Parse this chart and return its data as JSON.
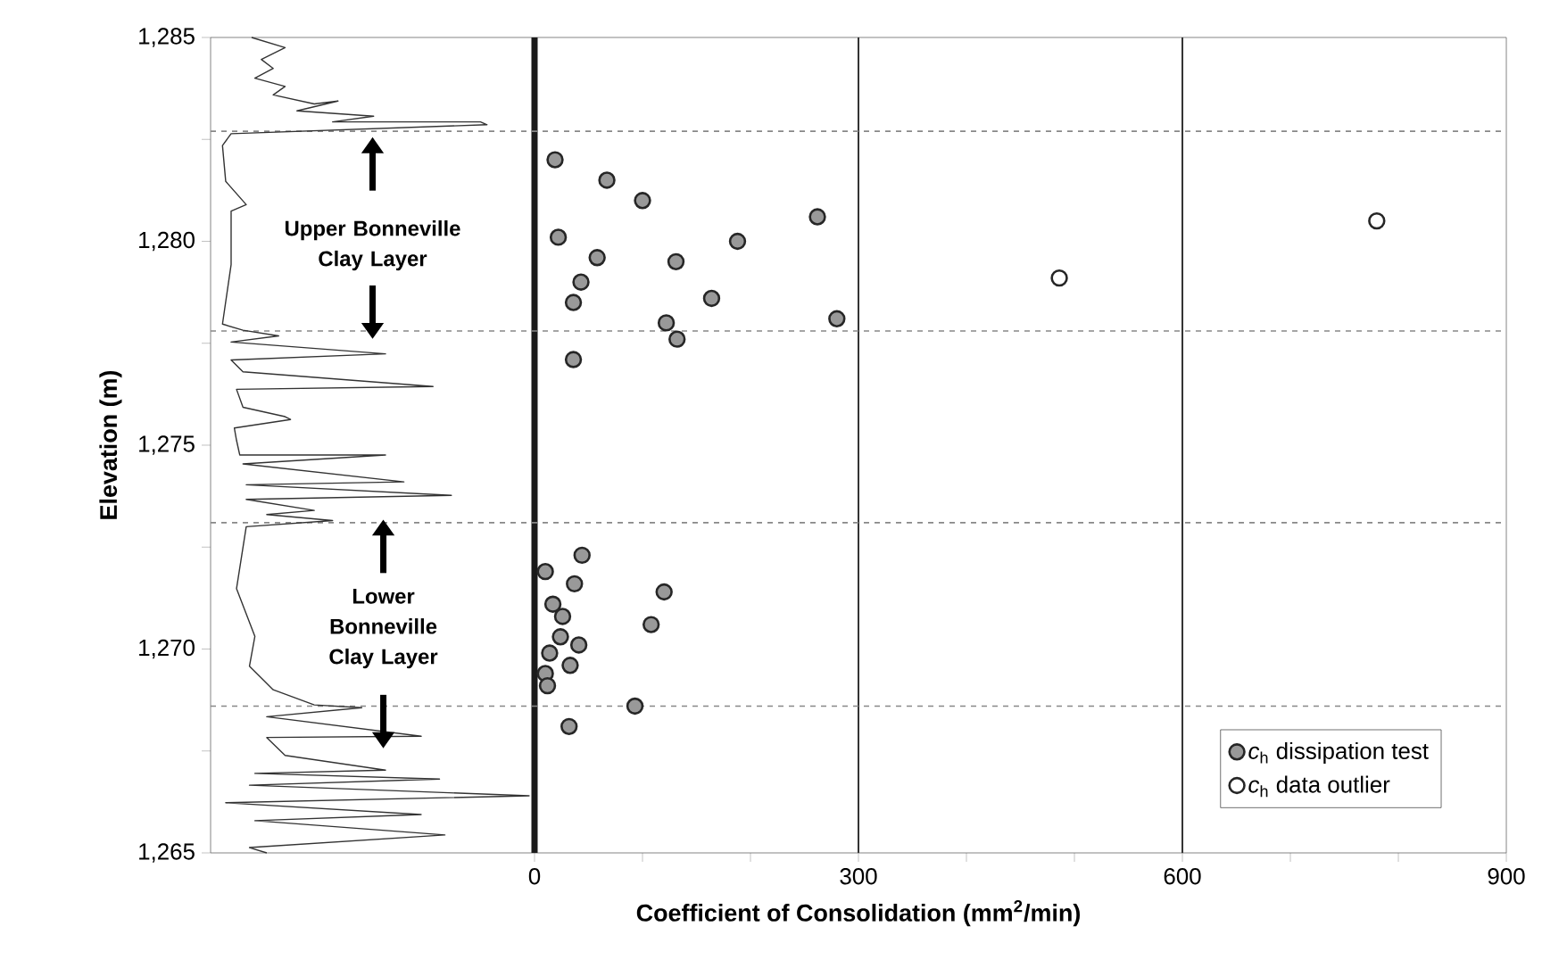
{
  "chart_data": {
    "type": "scatter",
    "xlabel": "Coefficient of Consolidation (mm$^{2}$/min)",
    "ylabel": "Elevation (m)",
    "xlim": [
      -300,
      900
    ],
    "xticks": [
      0,
      {
        "value": 100,
        "label": null
      },
      {
        "value": 200,
        "label": null
      },
      300,
      {
        "value": 400,
        "label": null
      },
      {
        "value": 500,
        "label": null
      },
      600,
      {
        "value": 700,
        "label": null
      },
      {
        "value": 800,
        "label": null
      },
      900
    ],
    "ylim": [
      1265,
      1285
    ],
    "yticks": [
      {
        "value": 1265,
        "label": "1,265"
      },
      {
        "value": 1267.5,
        "label": null
      },
      {
        "value": 1270,
        "label": "1,270"
      },
      {
        "value": 1272.5,
        "label": null
      },
      {
        "value": 1275,
        "label": "1,275"
      },
      {
        "value": 1277.5,
        "label": null
      },
      {
        "value": 1280,
        "label": "1,280"
      },
      {
        "value": 1282.5,
        "label": null
      },
      {
        "value": 1285,
        "label": "1,285"
      }
    ],
    "legend": "bottom right",
    "series": [
      {
        "type": "line",
        "marker": "none",
        "color": "#333333",
        "x": [
          -262,
          -231,
          -253,
          -242,
          -259,
          -231,
          -242,
          -204,
          -182,
          -220,
          -149,
          -187,
          -50,
          -44,
          -281,
          -289,
          -286,
          -267,
          -281,
          -281,
          -289,
          -270,
          -237,
          -281,
          -138,
          -281,
          -270,
          -94,
          -276,
          -270,
          -231,
          -226,
          -278,
          -276,
          -273,
          -138,
          -270,
          -121,
          -267,
          -77,
          -267,
          -204,
          -248,
          -187,
          -267,
          -276,
          -259,
          -264,
          -242,
          -204,
          -160,
          -248,
          -105,
          -248,
          -231,
          -138,
          -259,
          -88,
          -264,
          -5,
          -286,
          -105,
          -259,
          -83,
          -264,
          -248
        ],
        "values": [
          1285.0,
          1284.75,
          1284.46,
          1284.24,
          1284.0,
          1283.8,
          1283.59,
          1283.37,
          1283.44,
          1283.2,
          1283.07,
          1282.93,
          1282.93,
          1282.86,
          1282.64,
          1282.35,
          1281.47,
          1280.9,
          1280.74,
          1279.43,
          1277.97,
          1277.82,
          1277.68,
          1277.53,
          1277.24,
          1277.09,
          1276.8,
          1276.44,
          1276.37,
          1275.93,
          1275.7,
          1275.63,
          1275.42,
          1275.12,
          1274.76,
          1274.76,
          1274.54,
          1274.1,
          1274.03,
          1273.77,
          1273.67,
          1273.4,
          1273.3,
          1273.15,
          1273.0,
          1271.48,
          1270.31,
          1269.58,
          1269.0,
          1268.63,
          1268.56,
          1268.34,
          1267.86,
          1267.83,
          1267.39,
          1267.03,
          1266.95,
          1266.81,
          1266.66,
          1266.4,
          1266.23,
          1265.94,
          1265.79,
          1265.44,
          1265.13,
          1265.0
        ]
      },
      {
        "marker": "circle",
        "name": "*c*$_{h}$ dissipation test",
        "color": "#999999",
        "x": [
          19,
          67,
          100,
          262,
          22,
          188,
          58,
          131,
          43,
          36,
          164,
          122,
          280,
          132,
          36,
          44,
          10,
          37,
          120,
          17,
          26,
          108,
          24,
          41,
          14,
          33,
          10,
          12,
          93,
          32
        ],
        "values": [
          1282.0,
          1281.5,
          1281.0,
          1280.6,
          1280.1,
          1280.0,
          1279.6,
          1279.5,
          1279.0,
          1278.5,
          1278.6,
          1278.0,
          1278.1,
          1277.6,
          1277.1,
          1272.3,
          1271.9,
          1271.6,
          1271.4,
          1271.1,
          1270.8,
          1270.6,
          1270.3,
          1270.1,
          1269.9,
          1269.6,
          1269.4,
          1269.1,
          1268.6,
          1268.1
        ]
      },
      {
        "marker": "circle",
        "name": "*c*$_{h}$ data outlier",
        "color": "#ffffff",
        "x": [
          486,
          780
        ],
        "values": [
          1279.1,
          1280.5
        ]
      }
    ],
    "ref_lines": [
      {
        "axis": "x",
        "value": 0,
        "color": "#1a1a1a",
        "line_style": "solid"
      },
      {
        "axis": "x",
        "value": 300,
        "color": "#333333",
        "line_style": "solid"
      },
      {
        "axis": "x",
        "value": 600,
        "color": "#333333",
        "line_style": "solid"
      },
      {
        "axis": "y",
        "value": 1282.7,
        "color": "#888888",
        "line_style": "dashed"
      },
      {
        "axis": "y",
        "value": 1277.8,
        "color": "#888888",
        "line_style": "dashed"
      },
      {
        "axis": "y",
        "value": 1273.1,
        "color": "#888888",
        "line_style": "dashed"
      },
      {
        "axis": "y",
        "value": 1268.6,
        "color": "#888888",
        "line_style": "dashed"
      }
    ],
    "annotations": [
      "Upper Bonneville Clay Layer",
      "Lower Bonneville Clay Layer"
    ]
  }
}
